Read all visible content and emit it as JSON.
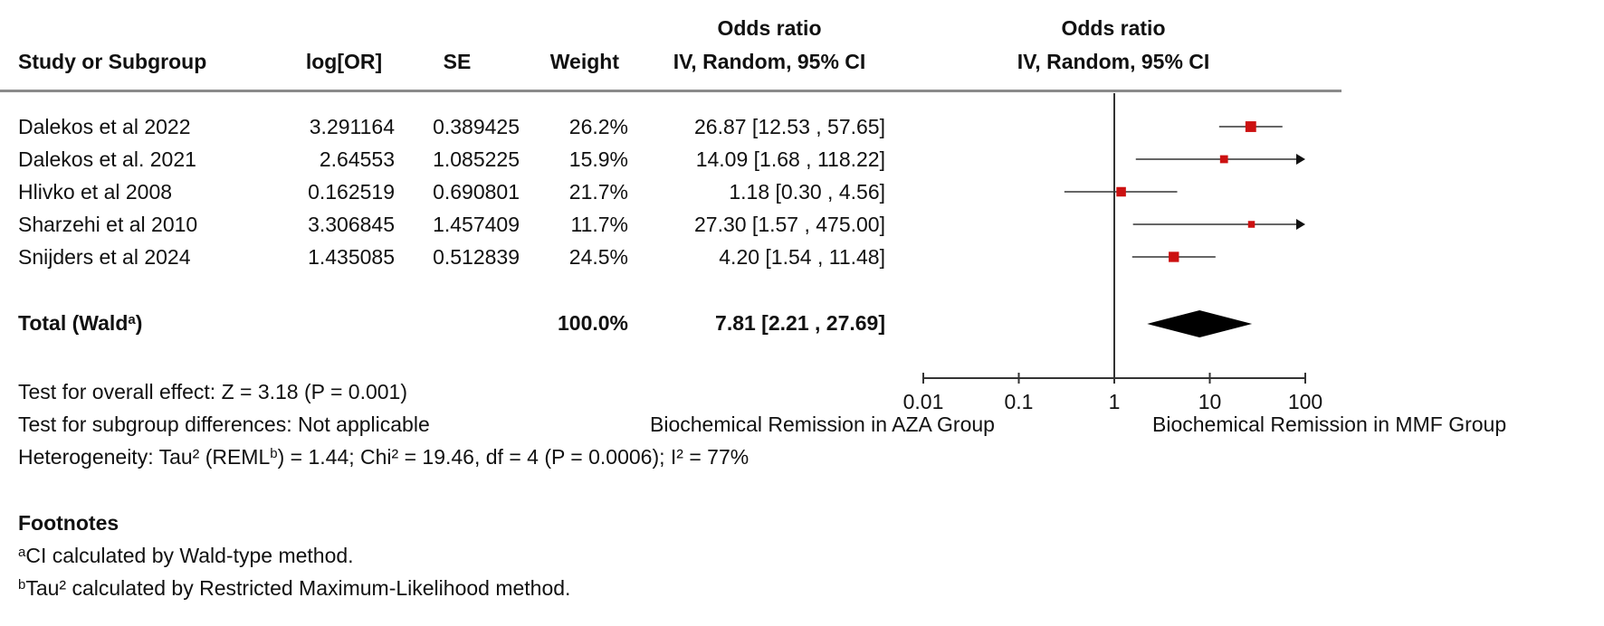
{
  "columns": {
    "study": "Study or Subgroup",
    "log_or": "log[OR]",
    "se": "SE",
    "weight": "Weight",
    "or_title": "Odds ratio",
    "or_sub": "IV, Random, 95% CI",
    "plot_title": "Odds ratio",
    "plot_sub": "IV, Random, 95% CI"
  },
  "total": {
    "label": "Total (Wald",
    "label_sup": "a",
    "label_close": ")",
    "weight": "100.0%",
    "or_text": "7.81 [2.21 , 27.69]"
  },
  "tests": {
    "overall": "Test for overall effect: Z = 3.18 (P = 0.001)",
    "subgroup": "Test for subgroup differences: Not applicable",
    "heterogeneity_a": "Heterogeneity: Tau² (REML",
    "heterogeneity_sup": "b",
    "heterogeneity_b": ") = 1.44; Chi² = 19.46, df = 4 (P = 0.0006); I² = 77%"
  },
  "axis_labels": {
    "left": "Biochemical Remission in AZA Group",
    "right": "Biochemical Remission in MMF Group"
  },
  "footnotes": {
    "title": "Footnotes",
    "a_sup": "a",
    "a_text": "CI calculated by Wald-type method.",
    "b_sup": "b",
    "b_text": "Tau² calculated by Restricted Maximum-Likelihood method."
  },
  "chart_data": {
    "type": "scatter",
    "x_scale": "log",
    "xlim": [
      0.01,
      100
    ],
    "x_ticks": [
      {
        "value": 0.01,
        "label": "0.01"
      },
      {
        "value": 0.1,
        "label": "0.1"
      },
      {
        "value": 1,
        "label": "1"
      },
      {
        "value": 10,
        "label": "10"
      },
      {
        "value": 100,
        "label": "100"
      }
    ],
    "marker_color": "#cc1111",
    "studies": [
      {
        "name": "Dalekos et al 2022",
        "log_or": "3.291164",
        "se": "0.389425",
        "weight": "26.2%",
        "weight_value": 26.2,
        "or_text": "26.87 [12.53 , 57.65]",
        "or": 26.87,
        "lo": 12.53,
        "hi": 57.65
      },
      {
        "name": "Dalekos et al. 2021",
        "log_or": "2.64553",
        "se": "1.085225",
        "weight": "15.9%",
        "weight_value": 15.9,
        "or_text": "14.09 [1.68 , 118.22]",
        "or": 14.09,
        "lo": 1.68,
        "hi": 118.22
      },
      {
        "name": "Hlivko et al 2008",
        "log_or": "0.162519",
        "se": "0.690801",
        "weight": "21.7%",
        "weight_value": 21.7,
        "or_text": "1.18 [0.30 , 4.56]",
        "or": 1.18,
        "lo": 0.3,
        "hi": 4.56
      },
      {
        "name": "Sharzehi et al 2010",
        "log_or": "3.306845",
        "se": "1.457409",
        "weight": "11.7%",
        "weight_value": 11.7,
        "or_text": "27.30 [1.57 , 475.00]",
        "or": 27.3,
        "lo": 1.57,
        "hi": 475.0
      },
      {
        "name": "Snijders et al 2024",
        "log_or": "1.435085",
        "se": "0.512839",
        "weight": "24.5%",
        "weight_value": 24.5,
        "or_text": "4.20 [1.54 , 11.48]",
        "or": 4.2,
        "lo": 1.54,
        "hi": 11.48
      }
    ],
    "pooled": {
      "or": 7.81,
      "lo": 2.21,
      "hi": 27.69
    }
  }
}
